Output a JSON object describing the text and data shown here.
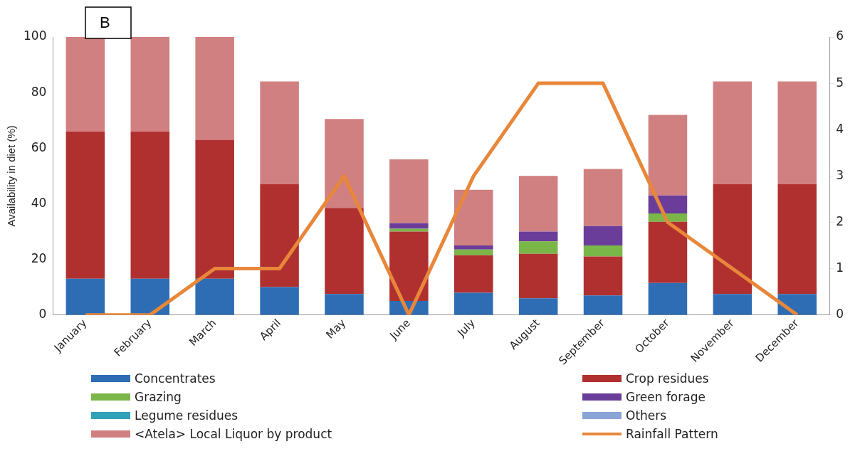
{
  "chart_data": {
    "type": "bar",
    "stacked": true,
    "ylabel": "Availability in diet (%)",
    "annotations": [
      "B"
    ],
    "categories": [
      "January",
      "February",
      "March",
      "April",
      "May",
      "June",
      "July",
      "August",
      "September",
      "October",
      "November",
      "December"
    ],
    "series": [
      {
        "name": "Concentrates",
        "color": "#2e6db4",
        "values": [
          13,
          13,
          13,
          10,
          7.5,
          5,
          8,
          6,
          7,
          11.5,
          7.5,
          7.5
        ]
      },
      {
        "name": "Crop residues",
        "color": "#b03030",
        "values": [
          53,
          53,
          50,
          37,
          31,
          25,
          13.5,
          16,
          14,
          22,
          39.5,
          39.5
        ]
      },
      {
        "name": "Grazing",
        "color": "#7ab648",
        "values": [
          0,
          0,
          0,
          0,
          0,
          1,
          2,
          4.5,
          4,
          3,
          0,
          0
        ]
      },
      {
        "name": "Green forage",
        "color": "#6a3d9a",
        "values": [
          0,
          0,
          0,
          0,
          0,
          2,
          1.5,
          3.5,
          7,
          6.5,
          0,
          0
        ]
      },
      {
        "name": "Legume residues",
        "color": "#31a2b8",
        "values": [
          0,
          0,
          0,
          0,
          0,
          0,
          0,
          0,
          0,
          0,
          0,
          0
        ]
      },
      {
        "name": "Others",
        "color": "#8aa4d6",
        "values": [
          0,
          0,
          0,
          0,
          0,
          0,
          0,
          0,
          0,
          0,
          0,
          0
        ]
      },
      {
        "name": "<Atela> Local Liquor by product",
        "color": "#d08080",
        "values": [
          34,
          34,
          37,
          37,
          32,
          23,
          20,
          20,
          20.5,
          29,
          37,
          37
        ]
      },
      {
        "name": "Rainfall Pattern",
        "type": "line",
        "axis": "y2",
        "color": "#e8873a",
        "values": [
          0,
          0,
          1,
          1,
          3,
          0,
          3,
          5,
          5,
          2,
          1,
          0
        ]
      }
    ],
    "ylim": [
      0,
      100
    ],
    "yticks": [
      0,
      20,
      40,
      60,
      80,
      100
    ],
    "y2lim": [
      0,
      6
    ],
    "y2ticks": [
      0,
      1,
      2,
      3,
      4,
      5,
      6
    ],
    "grid": false,
    "legend": "bottom",
    "marker": "none"
  }
}
